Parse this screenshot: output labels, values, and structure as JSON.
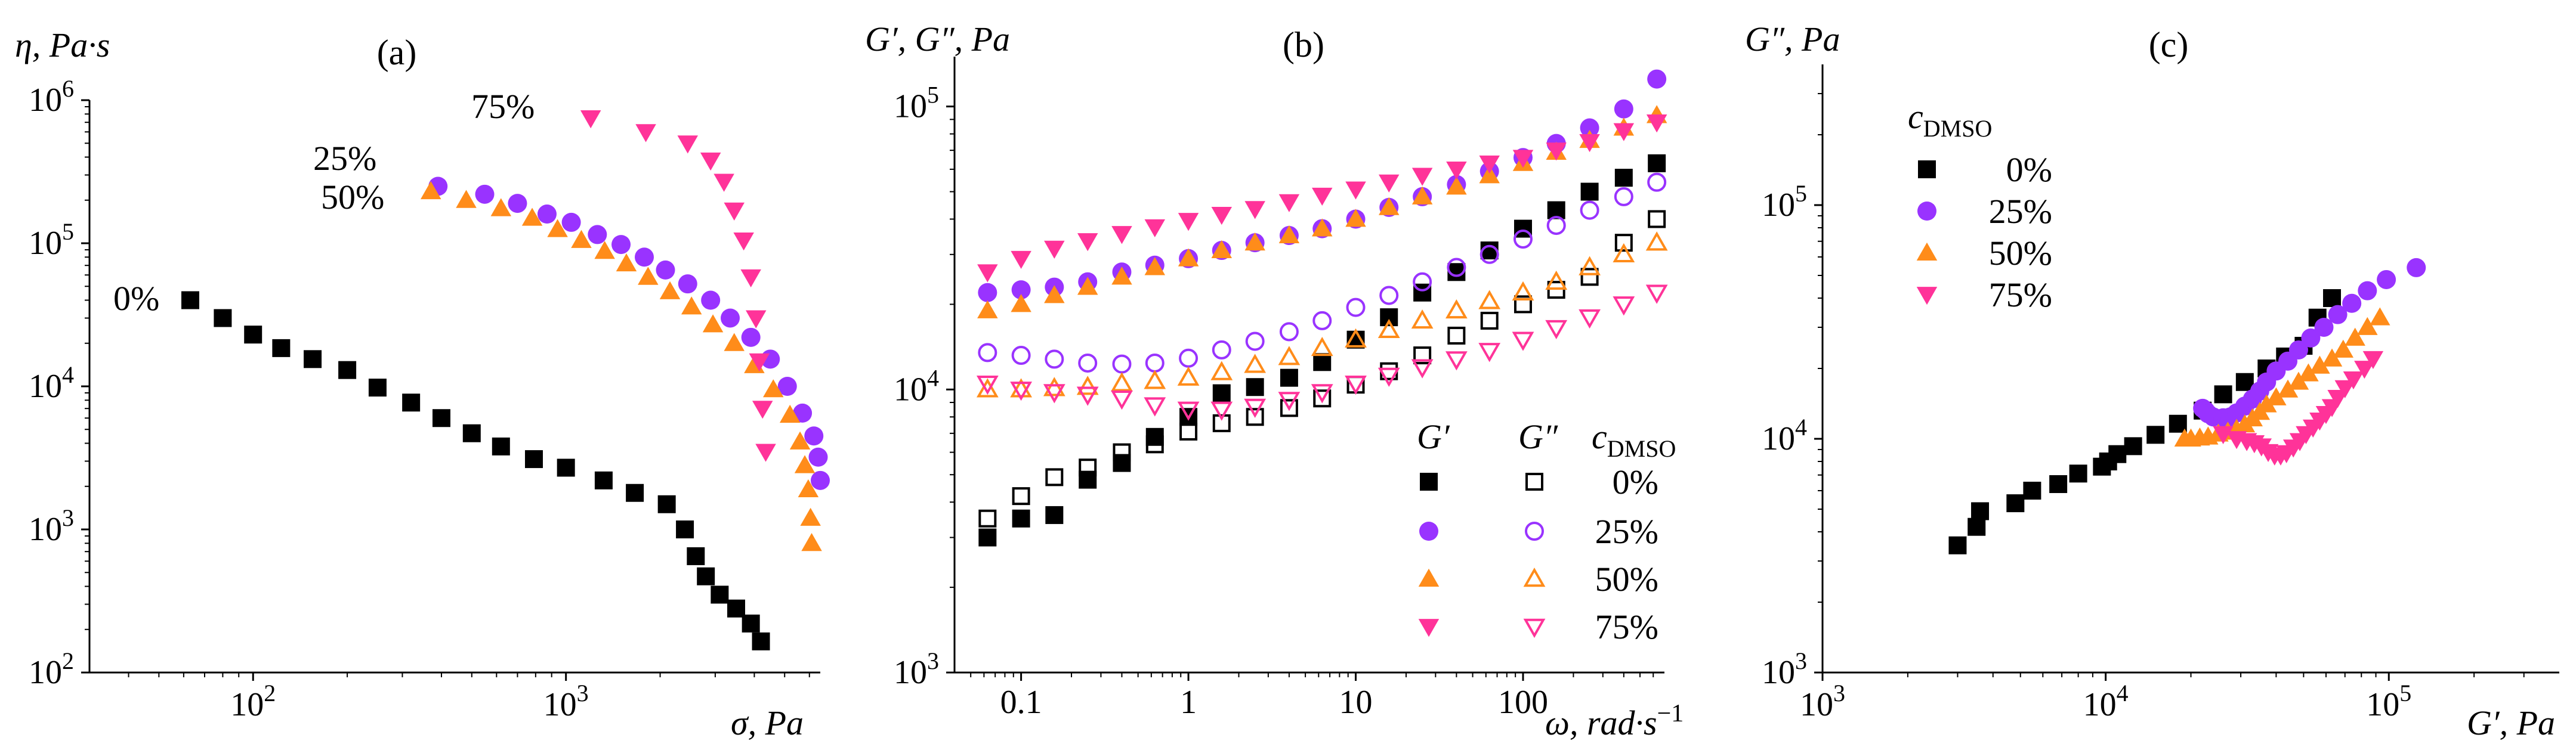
{
  "chart_data": [
    {
      "type": "scatter",
      "panel_label": "(a)",
      "ylabel": "η, Pa·s",
      "xlabel": "σ, Pa",
      "xscale": "log",
      "yscale": "log",
      "xlim": [
        30,
        6500
      ],
      "ylim": [
        100,
        1000000
      ],
      "x_ticks": [
        {
          "v": 100,
          "b": "10",
          "e": "2"
        },
        {
          "v": 1000,
          "b": "10",
          "e": "3"
        }
      ],
      "y_ticks": [
        {
          "v": 100,
          "b": "10",
          "e": "2"
        },
        {
          "v": 1000,
          "b": "10",
          "e": "3"
        },
        {
          "v": 10000,
          "b": "10",
          "e": "4"
        },
        {
          "v": 100000,
          "b": "10",
          "e": "5"
        },
        {
          "v": 1000000,
          "b": "10",
          "e": "6"
        }
      ],
      "annotations": [
        "0%",
        "25%",
        "50%",
        "75%"
      ],
      "series": [
        {
          "name": "0%",
          "marker": "square",
          "color": "#000000",
          "x": [
            63,
            80,
            100,
            123,
            155,
            200,
            250,
            320,
            400,
            500,
            620,
            790,
            1000,
            1320,
            1660,
            2100,
            2400,
            2600,
            2800,
            3100,
            3500,
            3900,
            4200
          ],
          "y": [
            40000,
            30000,
            23000,
            18500,
            15500,
            13000,
            9800,
            7700,
            6000,
            4700,
            3800,
            3100,
            2700,
            2200,
            1800,
            1500,
            1000,
            650,
            470,
            350,
            280,
            220,
            165
          ]
        },
        {
          "name": "25%",
          "marker": "circle",
          "color": "#9933ff",
          "x": [
            390,
            550,
            700,
            870,
            1040,
            1260,
            1500,
            1780,
            2080,
            2450,
            2900,
            3350,
            3900,
            4500,
            5100,
            5700,
            6200,
            6400,
            6500
          ],
          "y": [
            250000,
            220000,
            190000,
            160000,
            140000,
            115000,
            98000,
            80000,
            65000,
            52000,
            40000,
            30000,
            22000,
            15500,
            10000,
            6500,
            4500,
            3200,
            2200
          ]
        },
        {
          "name": "50%",
          "marker": "triangle-up",
          "color": "#ff8c1a",
          "x": [
            370,
            480,
            620,
            780,
            940,
            1120,
            1330,
            1560,
            1830,
            2150,
            2520,
            2950,
            3450,
            4000,
            4600,
            5200,
            5600,
            5800,
            5950,
            6050,
            6100
          ],
          "y": [
            230000,
            200000,
            175000,
            150000,
            125000,
            105000,
            88000,
            72000,
            58000,
            46000,
            36000,
            27000,
            20000,
            14000,
            9500,
            6300,
            4100,
            2800,
            1900,
            1200,
            800
          ]
        },
        {
          "name": "75%",
          "marker": "triangle-down",
          "color": "#ff3399",
          "x": [
            1200,
            1800,
            2450,
            2900,
            3200,
            3450,
            3700,
            3900,
            4050,
            4150,
            4250,
            4350
          ],
          "y": [
            750000,
            600000,
            500000,
            380000,
            270000,
            170000,
            105000,
            58000,
            30000,
            15000,
            7000,
            3500
          ]
        }
      ]
    },
    {
      "type": "scatter",
      "panel_label": "(b)",
      "ylabel": "G′, G″, Pa",
      "xlabel": "ω, rad·s",
      "xlabel_sup": "−1",
      "xscale": "log",
      "yscale": "log",
      "xlim": [
        0.04,
        700
      ],
      "ylim": [
        1000,
        150000
      ],
      "x_ticks": [
        {
          "v": 0.1,
          "t": "0.1"
        },
        {
          "v": 1,
          "t": "1"
        },
        {
          "v": 10,
          "t": "10"
        },
        {
          "v": 100,
          "t": "100"
        }
      ],
      "y_ticks": [
        {
          "v": 1000,
          "b": "10",
          "e": "3"
        },
        {
          "v": 10000,
          "b": "10",
          "e": "4"
        },
        {
          "v": 100000,
          "b": "10",
          "e": "5"
        }
      ],
      "x_points": [
        0.063,
        0.1,
        0.158,
        0.25,
        0.4,
        0.63,
        1,
        1.58,
        2.5,
        4,
        6.3,
        10,
        15.8,
        25,
        40,
        63,
        100,
        158,
        250,
        400,
        630
      ],
      "legend": {
        "col_gp": "G′",
        "col_gpp": "G″",
        "col_c": "c",
        "col_c_sub": "DMSO",
        "rows": [
          "0%",
          "25%",
          "50%",
          "75%"
        ]
      },
      "series": [
        {
          "name": "G′ 0%",
          "marker": "square",
          "fill": "solid",
          "color": "#000000",
          "y": [
            3000,
            3500,
            3600,
            4800,
            5500,
            6800,
            8000,
            9700,
            10200,
            11000,
            12500,
            15000,
            18000,
            22000,
            26000,
            31000,
            37000,
            43000,
            50000,
            56000,
            63000
          ]
        },
        {
          "name": "G″ 0%",
          "marker": "square",
          "fill": "open",
          "color": "#000000",
          "y": [
            3500,
            4200,
            4900,
            5300,
            6000,
            6400,
            7100,
            7600,
            8000,
            8600,
            9300,
            10400,
            11600,
            13200,
            15500,
            17500,
            20000,
            22500,
            25000,
            33000,
            40000
          ]
        },
        {
          "name": "G′ 25%",
          "marker": "circle",
          "fill": "solid",
          "color": "#9933ff",
          "y": [
            22000,
            22500,
            23000,
            24000,
            26000,
            27500,
            29000,
            31000,
            33000,
            35000,
            37000,
            40000,
            44000,
            48000,
            53000,
            59000,
            66000,
            74000,
            84000,
            98000,
            125000
          ]
        },
        {
          "name": "G″ 25%",
          "marker": "circle",
          "fill": "open",
          "color": "#9933ff",
          "y": [
            13500,
            13200,
            12800,
            12400,
            12300,
            12400,
            12900,
            13800,
            14800,
            16000,
            17500,
            19500,
            21500,
            24000,
            27000,
            30000,
            34000,
            38000,
            43000,
            48000,
            54000
          ]
        },
        {
          "name": "G′ 50%",
          "marker": "triangle-up",
          "fill": "solid",
          "color": "#ff8c1a",
          "y": [
            19000,
            20000,
            21500,
            23000,
            25000,
            27000,
            29000,
            31000,
            33000,
            35000,
            37000,
            40000,
            44000,
            48000,
            52000,
            57000,
            63000,
            69000,
            76000,
            84000,
            93000
          ]
        },
        {
          "name": "G″ 50%",
          "marker": "triangle-up",
          "fill": "open",
          "color": "#ff8c1a",
          "y": [
            10000,
            10000,
            10100,
            10200,
            10500,
            10700,
            11000,
            11500,
            12200,
            13000,
            14000,
            15000,
            16200,
            17500,
            19000,
            20500,
            22000,
            24000,
            27000,
            30000,
            33000
          ]
        },
        {
          "name": "G′ 75%",
          "marker": "triangle-down",
          "fill": "solid",
          "color": "#ff3399",
          "y": [
            26000,
            29000,
            31500,
            33500,
            35500,
            37500,
            39500,
            41500,
            43500,
            46000,
            48500,
            51000,
            54000,
            57000,
            60000,
            63000,
            66000,
            70000,
            75000,
            82000,
            88000
          ]
        },
        {
          "name": "G″ 75%",
          "marker": "triangle-down",
          "fill": "open",
          "color": "#ff3399",
          "y": [
            10500,
            10000,
            9800,
            9600,
            9300,
            8800,
            8500,
            8500,
            8700,
            9200,
            9800,
            10500,
            11200,
            12000,
            12800,
            13700,
            15000,
            16500,
            18000,
            20000,
            22000
          ]
        }
      ]
    },
    {
      "type": "scatter",
      "panel_label": "(c)",
      "ylabel": "G″, Pa",
      "xlabel": "G′, Pa",
      "xscale": "log",
      "yscale": "log",
      "xlim": [
        1000,
        400000
      ],
      "ylim": [
        1000,
        400000
      ],
      "x_ticks": [
        {
          "v": 1000,
          "b": "10",
          "e": "3"
        },
        {
          "v": 10000,
          "b": "10",
          "e": "4"
        },
        {
          "v": 100000,
          "b": "10",
          "e": "5"
        }
      ],
      "y_ticks": [
        {
          "v": 1000,
          "b": "10",
          "e": "3"
        },
        {
          "v": 10000,
          "b": "10",
          "e": "4"
        },
        {
          "v": 100000,
          "b": "10",
          "e": "5"
        }
      ],
      "legend": {
        "title": "c",
        "title_sub": "DMSO",
        "rows": [
          "0%",
          "25%",
          "50%",
          "75%"
        ]
      },
      "series": [
        {
          "name": "0%",
          "marker": "square",
          "color": "#000000",
          "x": [
            3000,
            3500,
            3600,
            4800,
            5500,
            6800,
            8000,
            9700,
            10200,
            11000,
            12500,
            15000,
            18000,
            22000,
            26000,
            31000,
            37000,
            43000,
            50000,
            56000,
            63000
          ],
          "y": [
            3500,
            4200,
            4900,
            5300,
            6000,
            6400,
            7100,
            7600,
            8000,
            8600,
            9300,
            10400,
            11600,
            13200,
            15500,
            17500,
            20000,
            22500,
            25000,
            33000,
            40000
          ]
        },
        {
          "name": "25%",
          "marker": "circle",
          "color": "#9933ff",
          "x": [
            22000,
            22500,
            23000,
            24000,
            26000,
            27500,
            29000,
            31000,
            33000,
            35000,
            37000,
            40000,
            44000,
            48000,
            53000,
            59000,
            66000,
            74000,
            84000,
            98000,
            125000
          ],
          "y": [
            13500,
            13200,
            12800,
            12400,
            12300,
            12400,
            12900,
            13800,
            14800,
            16000,
            17500,
            19500,
            21500,
            24000,
            27000,
            30000,
            34000,
            38000,
            43000,
            48000,
            54000
          ]
        },
        {
          "name": "50%",
          "marker": "triangle-up",
          "color": "#ff8c1a",
          "x": [
            19000,
            20000,
            21500,
            23000,
            25000,
            27000,
            29000,
            31000,
            33000,
            35000,
            37000,
            40000,
            44000,
            48000,
            52000,
            57000,
            63000,
            69000,
            76000,
            84000,
            93000
          ],
          "y": [
            10000,
            10000,
            10100,
            10200,
            10500,
            10700,
            11000,
            11500,
            12200,
            13000,
            14000,
            15000,
            16200,
            17500,
            19000,
            20500,
            22000,
            24000,
            27000,
            30000,
            33000
          ]
        },
        {
          "name": "75%",
          "marker": "triangle-down",
          "color": "#ff3399",
          "x": [
            26000,
            29000,
            31500,
            33500,
            35500,
            37500,
            39500,
            41500,
            43500,
            46000,
            48500,
            51000,
            54000,
            57000,
            60000,
            63000,
            66000,
            70000,
            75000,
            82000,
            88000
          ],
          "y": [
            10500,
            10000,
            9800,
            9600,
            9300,
            8800,
            8500,
            8500,
            8700,
            9200,
            9800,
            10500,
            11200,
            12000,
            12800,
            13700,
            15000,
            16500,
            18000,
            20000,
            22000
          ]
        }
      ]
    }
  ]
}
